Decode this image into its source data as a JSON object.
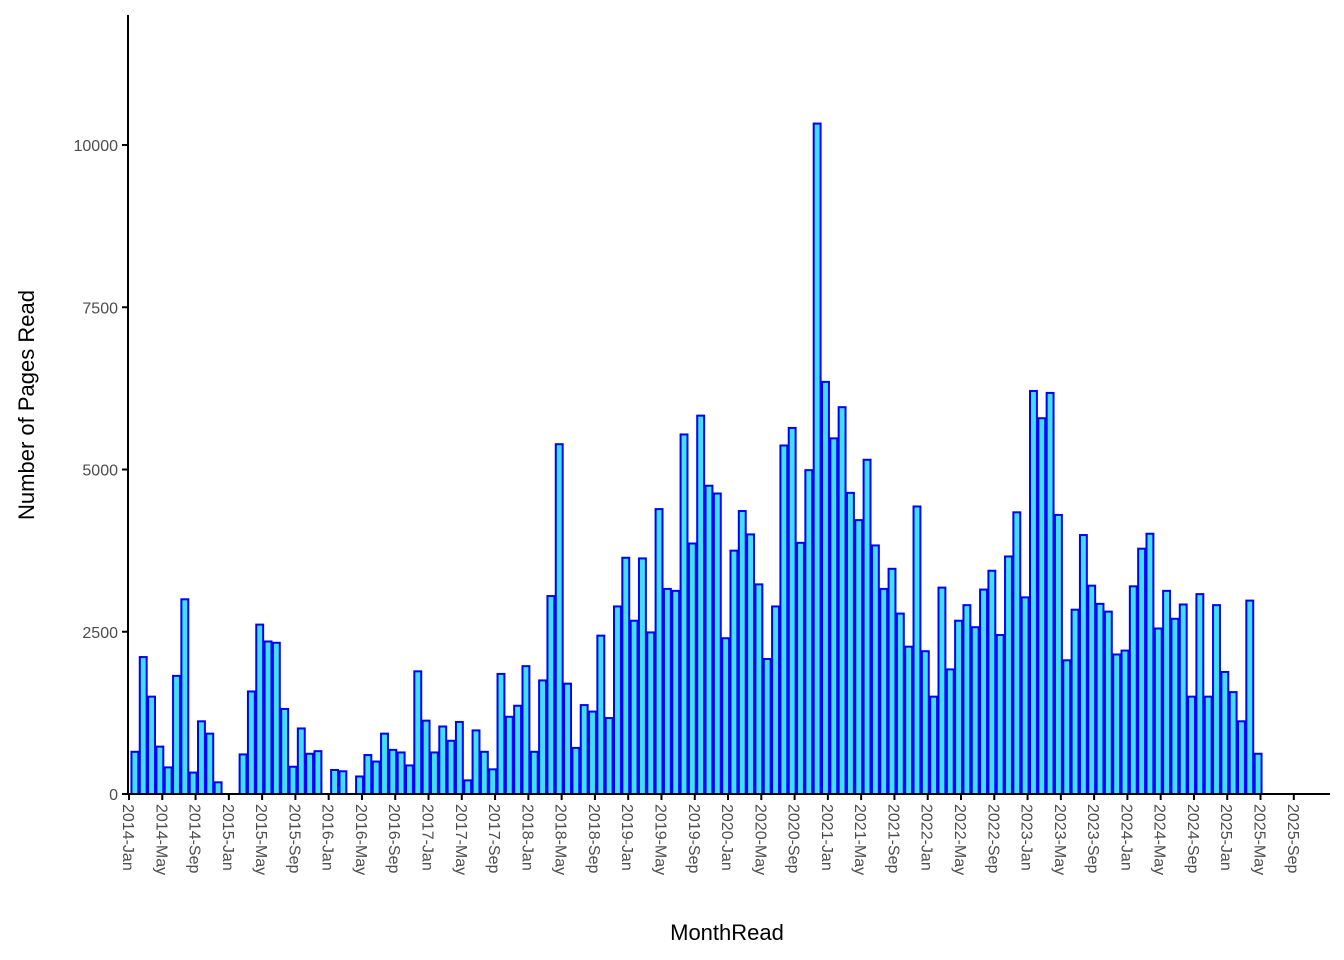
{
  "chart_data": {
    "type": "bar",
    "xlabel": "MonthRead",
    "ylabel": "Number of Pages Read",
    "ylim": [
      0,
      11500
    ],
    "yticks": [
      0,
      2500,
      5000,
      7500,
      10000
    ],
    "start_month": "2014-Jan",
    "xtick_labels": [
      "2014-Jan",
      "2014-May",
      "2014-Sep",
      "2015-Jan",
      "2015-May",
      "2015-Sep",
      "2016-Jan",
      "2016-May",
      "2016-Sep",
      "2017-Jan",
      "2017-May",
      "2017-Sep",
      "2018-Jan",
      "2018-May",
      "2018-Sep",
      "2019-Jan",
      "2019-May",
      "2019-Sep",
      "2020-Jan",
      "2020-May",
      "2020-Sep",
      "2021-Jan",
      "2021-May",
      "2021-Sep",
      "2022-Jan",
      "2022-May",
      "2022-Sep",
      "2023-Jan",
      "2023-May",
      "2023-Sep",
      "2024-Jan",
      "2024-May",
      "2024-Sep",
      "2025-Jan",
      "2025-May",
      "2025-Sep"
    ],
    "grid": false,
    "legend": "none",
    "colors": {
      "fill": "#40e0f0",
      "stroke": "#0000ff",
      "axis": "#000000"
    },
    "values": [
      650,
      2110,
      1500,
      730,
      410,
      1820,
      3000,
      330,
      1120,
      930,
      180,
      null,
      null,
      610,
      1580,
      2610,
      2350,
      2330,
      1310,
      420,
      1010,
      620,
      660,
      null,
      370,
      350,
      null,
      270,
      600,
      500,
      930,
      680,
      640,
      440,
      1890,
      1130,
      640,
      1040,
      820,
      1110,
      210,
      980,
      650,
      380,
      1850,
      1190,
      1360,
      1970,
      650,
      1750,
      3050,
      5390,
      1700,
      710,
      1370,
      1270,
      2440,
      1170,
      2890,
      3640,
      2670,
      3630,
      2490,
      4390,
      3160,
      3130,
      5540,
      3860,
      5830,
      4750,
      4630,
      2400,
      3750,
      4360,
      4000,
      3230,
      2080,
      2890,
      5370,
      5640,
      3870,
      4990,
      10330,
      6350,
      5480,
      5960,
      4640,
      4220,
      5150,
      3830,
      3160,
      3470,
      2780,
      2270,
      4430,
      2200,
      1500,
      3180,
      1920,
      2670,
      2910,
      2570,
      3150,
      3440,
      2450,
      3660,
      4340,
      3030,
      6210,
      5790,
      6180,
      4300,
      2060,
      2840,
      3990,
      3210,
      2930,
      2810,
      2150,
      2210,
      3200,
      3780,
      4010,
      2550,
      3130,
      2700,
      2920,
      1500,
      3080,
      1500,
      2910,
      1880,
      1570,
      1120,
      2980,
      620
    ]
  }
}
